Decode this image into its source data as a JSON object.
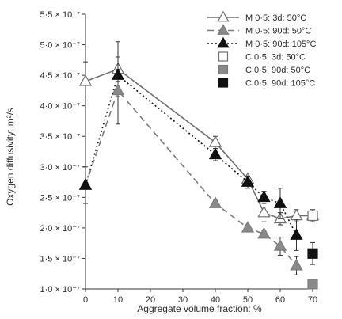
{
  "chart_data": {
    "type": "line",
    "title": "",
    "xlabel": "Aggregate volume fraction: %",
    "ylabel": "Oxygen diffusivity: m²/s",
    "xlim": [
      0,
      70
    ],
    "ylim": [
      1.0,
      5.5
    ],
    "x_tick_values": [
      0,
      10,
      20,
      30,
      40,
      50,
      60,
      70
    ],
    "x_ticks": [
      "0",
      "10",
      "20",
      "30",
      "40",
      "50",
      "60",
      "70"
    ],
    "y_tick_values": [
      1.0,
      1.5,
      2.0,
      2.5,
      3.0,
      3.5,
      4.0,
      4.5,
      5.0,
      5.5
    ],
    "y_ticks": [
      "1·0 × 10⁻⁷",
      "1·5 × 10⁻⁷",
      "2·0 × 10⁻⁷",
      "2·5 × 10⁻⁷",
      "3·0 × 10⁻⁷",
      "3·5 × 10⁻⁷",
      "4·0 × 10⁻⁷",
      "4·5 × 10⁻⁷",
      "5·0 × 10⁻⁷",
      "5·5 × 10⁻⁷"
    ],
    "y_unit_multiplier": "× 10⁻⁷",
    "grid": false,
    "legend_position": "top-right",
    "series": [
      {
        "name": "M 0·5: 3d: 50°C",
        "line": "solid",
        "marker": "triangle",
        "fill": "open",
        "color": "#6e6e6e",
        "points": [
          {
            "x": 0,
            "y": 4.4,
            "err": 0.32
          },
          {
            "x": 10,
            "y": 4.6,
            "err": 0.45
          },
          {
            "x": 40,
            "y": 3.4,
            "err": 0.1
          },
          {
            "x": 50,
            "y": 2.8,
            "err": 0.1
          },
          {
            "x": 55,
            "y": 2.25,
            "err": 0.15
          },
          {
            "x": 60,
            "y": 2.15,
            "err": 0.1
          },
          {
            "x": 65,
            "y": 2.2,
            "err": 0.1
          },
          {
            "x": 70,
            "y": 2.2,
            "err": 0.1
          }
        ]
      },
      {
        "name": "M 0·5: 90d: 50°C",
        "line": "dashed",
        "marker": "triangle",
        "fill": "grey",
        "color": "#7b7b7b",
        "points": [
          {
            "x": 0,
            "y": 2.7,
            "err": 0.3
          },
          {
            "x": 10,
            "y": 4.25,
            "err": 0.55
          },
          {
            "x": 40,
            "y": 2.4,
            "err": 0.05
          },
          {
            "x": 50,
            "y": 2.0,
            "err": 0.05
          },
          {
            "x": 55,
            "y": 1.9,
            "err": 0.05
          },
          {
            "x": 60,
            "y": 1.7,
            "err": 0.15
          },
          {
            "x": 65,
            "y": 1.38,
            "err": 0.15
          }
        ]
      },
      {
        "name": "M 0·5: 90d: 105°C",
        "line": "dotted",
        "marker": "triangle",
        "fill": "filled",
        "color": "#111111",
        "points": [
          {
            "x": 0,
            "y": 2.7,
            "err": 0
          },
          {
            "x": 10,
            "y": 4.5,
            "err": 0.1
          },
          {
            "x": 40,
            "y": 3.2,
            "err": 0.1
          },
          {
            "x": 50,
            "y": 2.75,
            "err": 0.1
          },
          {
            "x": 55,
            "y": 2.5,
            "err": 0.1
          },
          {
            "x": 60,
            "y": 2.4,
            "err": 0.25
          },
          {
            "x": 65,
            "y": 1.88,
            "err": 0.25
          }
        ]
      },
      {
        "name": "C 0·5: 3d: 50°C",
        "line": "none",
        "marker": "square",
        "fill": "open",
        "color": "#6e6e6e",
        "points": [
          {
            "x": 70,
            "y": 2.2,
            "err": 0
          }
        ]
      },
      {
        "name": "C 0·5: 90d: 50°C",
        "line": "none",
        "marker": "square",
        "fill": "grey",
        "color": "#7b7b7b",
        "points": [
          {
            "x": 70,
            "y": 1.08,
            "err": 0
          }
        ]
      },
      {
        "name": "C 0·5: 90d: 105°C",
        "line": "none",
        "marker": "square",
        "fill": "filled",
        "color": "#111111",
        "points": [
          {
            "x": 70,
            "y": 1.58,
            "err": 0.18
          }
        ]
      }
    ]
  }
}
